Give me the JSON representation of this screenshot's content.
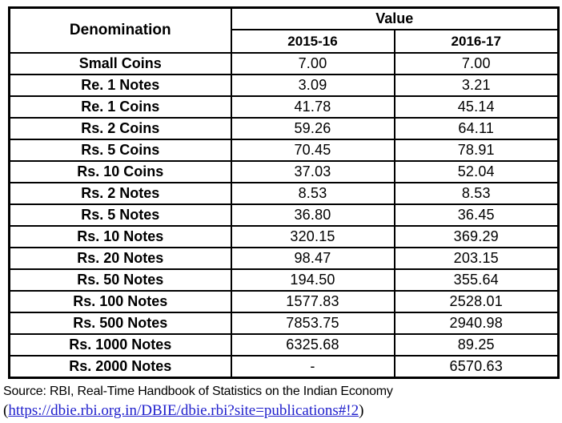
{
  "table": {
    "header": {
      "denomination": "Denomination",
      "value": "Value",
      "years": [
        "2015-16",
        "2016-17"
      ]
    },
    "rows": [
      {
        "label": "Small Coins",
        "values": [
          "7.00",
          "7.00"
        ]
      },
      {
        "label": "Re. 1 Notes",
        "values": [
          "3.09",
          "3.21"
        ]
      },
      {
        "label": "Re. 1 Coins",
        "values": [
          "41.78",
          "45.14"
        ]
      },
      {
        "label": "Rs. 2 Coins",
        "values": [
          "59.26",
          "64.11"
        ]
      },
      {
        "label": "Rs. 5 Coins",
        "values": [
          "70.45",
          "78.91"
        ]
      },
      {
        "label": "Rs. 10 Coins",
        "values": [
          "37.03",
          "52.04"
        ]
      },
      {
        "label": "Rs. 2 Notes",
        "values": [
          "8.53",
          "8.53"
        ]
      },
      {
        "label": "Rs. 5 Notes",
        "values": [
          "36.80",
          "36.45"
        ]
      },
      {
        "label": "Rs. 10 Notes",
        "values": [
          "320.15",
          "369.29"
        ]
      },
      {
        "label": "Rs. 20 Notes",
        "values": [
          "98.47",
          "203.15"
        ]
      },
      {
        "label": "Rs. 50 Notes",
        "values": [
          "194.50",
          "355.64"
        ]
      },
      {
        "label": "Rs. 100 Notes",
        "values": [
          "1577.83",
          "2528.01"
        ]
      },
      {
        "label": "Rs. 500 Notes",
        "values": [
          "7853.75",
          "2940.98"
        ]
      },
      {
        "label": "Rs. 1000 Notes",
        "values": [
          "6325.68",
          "89.25"
        ]
      },
      {
        "label": "Rs. 2000 Notes",
        "values": [
          "-",
          "6570.63"
        ]
      }
    ]
  },
  "footer": {
    "source": "Source: RBI, Real-Time Handbook of Statistics on the Indian Economy",
    "link_prefix": "(",
    "link": "https://dbie.rbi.org.in/DBIE/dbie.rbi?site=publications#!2",
    "link_suffix": ")"
  },
  "colors": {
    "text": "#000000",
    "border": "#000000",
    "background": "#ffffff",
    "link_blue": "#1e1ecc"
  }
}
